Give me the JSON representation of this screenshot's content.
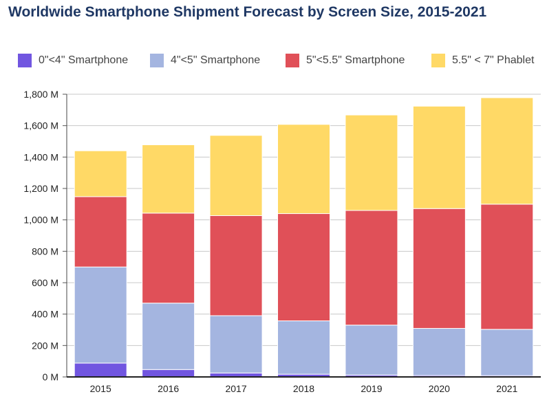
{
  "chart_data": {
    "type": "bar",
    "stacked": true,
    "title": "Worldwide Smartphone Shipment Forecast by Screen Size, 2015-2021",
    "xlabel": "",
    "ylabel": "",
    "categories": [
      "2015",
      "2016",
      "2017",
      "2018",
      "2019",
      "2020",
      "2021"
    ],
    "series": [
      {
        "name": "0\"<4\" Smartphone",
        "color": "#7156e0",
        "values": [
          88,
          47,
          25,
          17,
          12,
          9,
          8
        ]
      },
      {
        "name": "4\"<5\" Smartphone",
        "color": "#a4b5e0",
        "values": [
          612,
          423,
          365,
          340,
          318,
          300,
          295
        ]
      },
      {
        "name": "5\"<5.5\" Smartphone",
        "color": "#e05058",
        "values": [
          448,
          573,
          637,
          683,
          730,
          763,
          797
        ]
      },
      {
        "name": "5.5\" < 7\" Phablet",
        "color": "#ffd966",
        "values": [
          292,
          435,
          511,
          568,
          608,
          652,
          678
        ]
      }
    ],
    "ylim": [
      0,
      1800
    ],
    "yticks": [
      0,
      200,
      400,
      600,
      800,
      1000,
      1200,
      1400,
      1600,
      1800
    ],
    "ytick_labels": [
      "0 M",
      "200 M",
      "400 M",
      "600 M",
      "800 M",
      "1,000 M",
      "1,200 M",
      "1,400 M",
      "1,600 M",
      "1,800 M"
    ],
    "grid": true,
    "legend_position": "top"
  }
}
